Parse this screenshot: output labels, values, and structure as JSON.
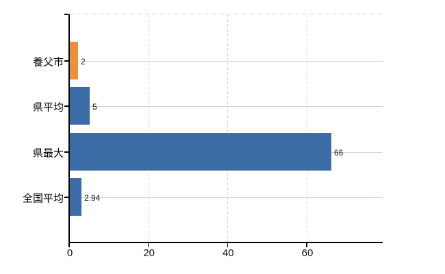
{
  "chart_data": {
    "type": "bar",
    "orientation": "horizontal",
    "title": "",
    "xlabel": "",
    "ylabel": "",
    "categories": [
      "養父市",
      "県平均",
      "県最大",
      "全国平均"
    ],
    "values": [
      2,
      5,
      66,
      2.94
    ],
    "value_labels": [
      "2",
      "5",
      "66",
      "2.94"
    ],
    "bar_colors": [
      "#ec9138",
      "#3b6ca6",
      "#3b6ca6",
      "#3b6ca6"
    ],
    "xticks": [
      0,
      20,
      40,
      60
    ],
    "xtick_labels": [
      "0",
      "20",
      "40",
      "60"
    ],
    "xlim": [
      0,
      79.2
    ],
    "grid": true,
    "legend": false,
    "colors": {
      "background": "#ffffff",
      "axis": "#000000",
      "horizontal_gridline": "#ccd5cc",
      "vertical_gridline": "#d4d4d8",
      "top_border": "#d8d2d6",
      "category_text": "#000000",
      "value_text": "#1a1a1a",
      "tick_text": "#111111"
    }
  }
}
